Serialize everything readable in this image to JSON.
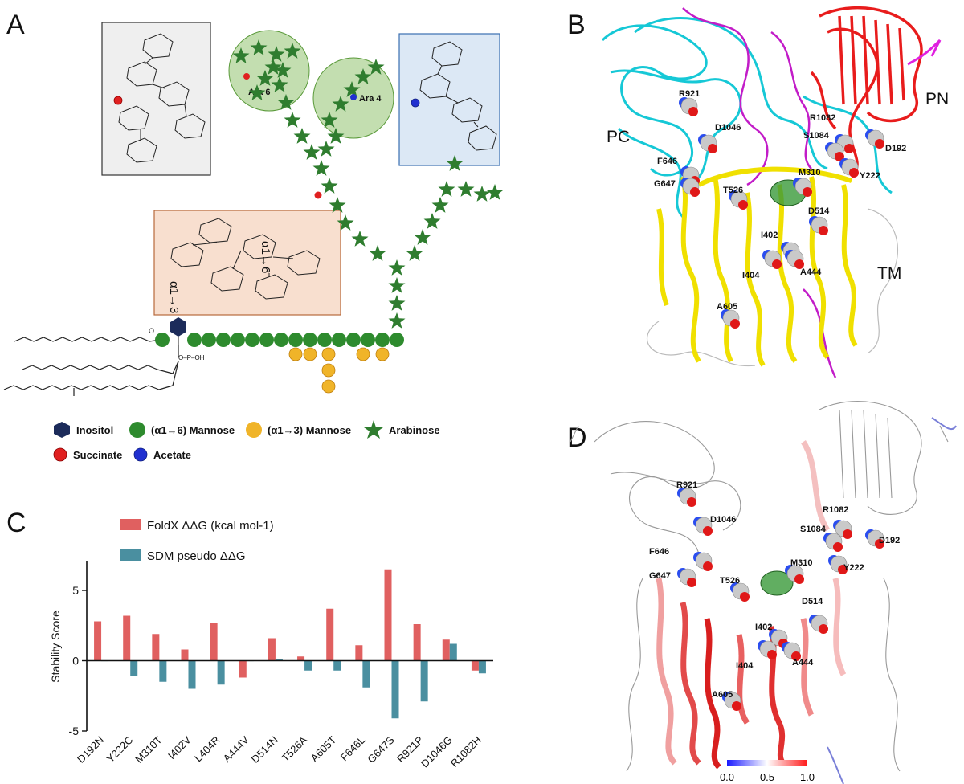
{
  "panels": {
    "a": "A",
    "b": "B",
    "c": "C",
    "d": "D"
  },
  "panel_a": {
    "ara6": "Ara 6",
    "ara4": "Ara 4",
    "alpha_16": "α1→6",
    "alpha_13": "α1→3",
    "legend": {
      "inositol": "Inositol",
      "a16_mannose": "(α1→6) Mannose",
      "a13_mannose": "(α1→3) Mannose",
      "arabinose": "Arabinose",
      "succinate": "Succinate",
      "acetate": "Acetate"
    },
    "colors": {
      "inositol": "#1c2b5a",
      "a16": "#2e8b2e",
      "a13": "#f0b429",
      "ara": "#2f7d2f",
      "succinate": "#e02020",
      "acetate": "#2030d0"
    }
  },
  "panel_b": {
    "regions": {
      "pc": "PC",
      "pn": "PN",
      "tm": "TM"
    },
    "residues": [
      "R921",
      "D1046",
      "R1082",
      "S1084",
      "D192",
      "F646",
      "G647",
      "M310",
      "Y222",
      "T526",
      "D514",
      "I402",
      "I404",
      "A444",
      "A605"
    ]
  },
  "panel_d": {
    "residues": [
      "R921",
      "D1046",
      "R1082",
      "S1084",
      "D192",
      "F646",
      "G647",
      "M310",
      "Y222",
      "T526",
      "D514",
      "I402",
      "I404",
      "A444",
      "A605"
    ],
    "colorbar_ticks": [
      "0.0",
      "0.5",
      "1.0"
    ]
  },
  "chart_data": {
    "type": "bar",
    "ylabel": "Stability Score",
    "xlabel": "",
    "ylim": [
      -5,
      7
    ],
    "yticks": [
      "5",
      "0",
      "-5"
    ],
    "categories": [
      "D192N",
      "Y222C",
      "M310T",
      "I402V",
      "L404R",
      "A444V",
      "D514N",
      "T526A",
      "A605T",
      "F646L",
      "G647S",
      "R921P",
      "D1046G",
      "R1082H"
    ],
    "series": [
      {
        "name": "FoldX ΔΔG (kcal mol-1)",
        "color": "#e06060",
        "values": [
          2.8,
          3.2,
          1.9,
          0.8,
          2.7,
          -1.2,
          1.6,
          0.3,
          3.7,
          1.1,
          6.5,
          2.6,
          1.5,
          -0.7
        ]
      },
      {
        "name": "SDM pseudo ΔΔG",
        "color": "#4a8fa0",
        "values": [
          0.0,
          -1.1,
          -1.5,
          -2.0,
          -1.7,
          0.0,
          0.1,
          -0.7,
          -0.7,
          -1.9,
          -4.1,
          -2.9,
          1.2,
          -0.9
        ]
      }
    ],
    "legend_position": "top"
  }
}
